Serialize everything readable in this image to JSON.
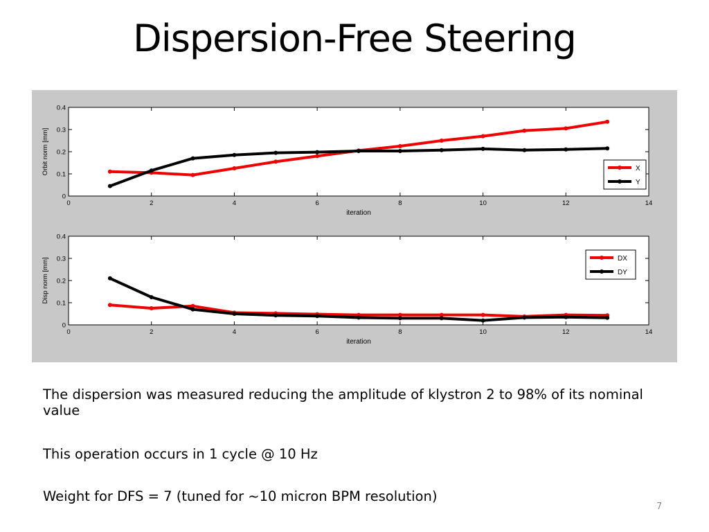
{
  "slide": {
    "title": "Dispersion-Free Steering",
    "paragraphs": [
      "The dispersion was measured reducing the amplitude of klystron 2 to 98% of its nominal value",
      "This operation occurs in 1 cycle @ 10 Hz",
      "Weight for DFS = 7    (tuned for ~10 micron BPM resolution)"
    ],
    "page_number": "7"
  },
  "colors": {
    "figure_background": "#c8c8c8",
    "red_series": "#ee0000",
    "black_series": "#000000"
  },
  "chart_data": [
    {
      "type": "line",
      "title": "",
      "xlabel": "iteration",
      "ylabel": "Orbit norm [mm]",
      "xlim": [
        0,
        14
      ],
      "ylim": [
        0,
        0.4
      ],
      "xticks": [
        "0",
        "2",
        "4",
        "6",
        "8",
        "10",
        "12",
        "14"
      ],
      "yticks": [
        "0",
        "0.1",
        "0.2",
        "0.3",
        "0.4"
      ],
      "grid": false,
      "legend_position": "right",
      "x": [
        1,
        2,
        3,
        4,
        5,
        6,
        7,
        8,
        9,
        10,
        11,
        12,
        13
      ],
      "series": [
        {
          "name": "X",
          "color": "#ee0000",
          "values": [
            0.11,
            0.105,
            0.095,
            0.125,
            0.155,
            0.18,
            0.205,
            0.225,
            0.25,
            0.27,
            0.295,
            0.305,
            0.335
          ]
        },
        {
          "name": "Y",
          "color": "#000000",
          "values": [
            0.045,
            0.115,
            0.17,
            0.185,
            0.195,
            0.198,
            0.203,
            0.203,
            0.207,
            0.213,
            0.207,
            0.21,
            0.215
          ]
        }
      ]
    },
    {
      "type": "line",
      "title": "",
      "xlabel": "iteration",
      "ylabel": "Disp norm [mm]",
      "xlim": [
        0,
        14
      ],
      "ylim": [
        0,
        0.4
      ],
      "xticks": [
        "0",
        "2",
        "4",
        "6",
        "8",
        "10",
        "12",
        "14"
      ],
      "yticks": [
        "0",
        "0.1",
        "0.2",
        "0.3",
        "0.4"
      ],
      "grid": false,
      "legend_position": "top-right",
      "x": [
        1,
        2,
        3,
        4,
        5,
        6,
        7,
        8,
        9,
        10,
        11,
        12,
        13
      ],
      "series": [
        {
          "name": "DX",
          "color": "#ee0000",
          "values": [
            0.09,
            0.075,
            0.085,
            0.055,
            0.052,
            0.048,
            0.045,
            0.045,
            0.045,
            0.045,
            0.038,
            0.045,
            0.043
          ]
        },
        {
          "name": "DY",
          "color": "#000000",
          "values": [
            0.21,
            0.125,
            0.07,
            0.05,
            0.043,
            0.04,
            0.033,
            0.03,
            0.03,
            0.02,
            0.033,
            0.035,
            0.032
          ]
        }
      ]
    }
  ]
}
